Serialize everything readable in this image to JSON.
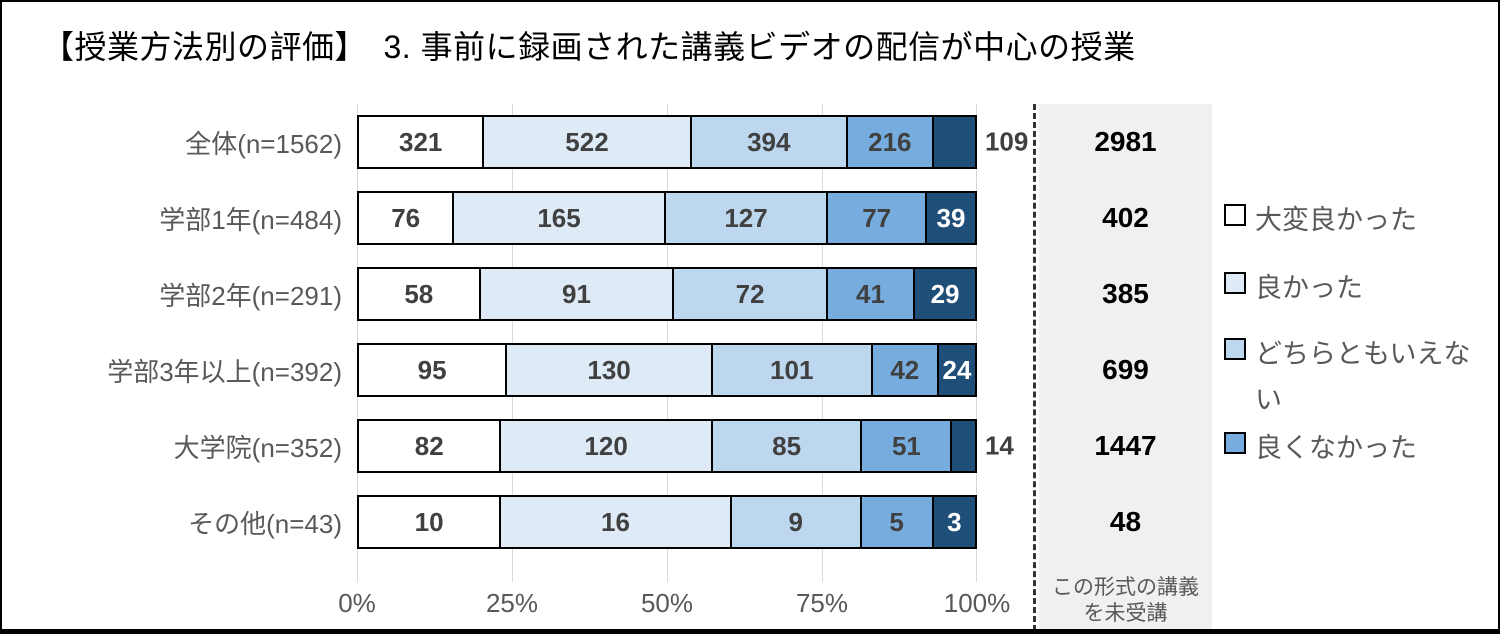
{
  "title": "【授業方法別の評価】　3. 事前に録画された講義ビデオの配信が中心の授業",
  "legend": [
    {
      "label": "大変良かった",
      "color": "#FFFFFF"
    },
    {
      "label": "良かった",
      "color": "#DEEBF7"
    },
    {
      "label": "どちらともいえない",
      "color": "#BDD7EE"
    },
    {
      "label": "良くなかった",
      "color": "#76ADDE"
    }
  ],
  "axis": {
    "ticks": [
      "0%",
      "25%",
      "50%",
      "75%",
      "100%"
    ]
  },
  "side_column": {
    "footer_lines": [
      "この形式の講義",
      "を未受講"
    ]
  },
  "colors": {
    "series": [
      "#FFFFFF",
      "#DEEBF7",
      "#BDD7EE",
      "#76ADDE",
      "#1F4E79"
    ],
    "grid": "#D9D9D9",
    "axis_text": "#595959",
    "value_text": "#404040",
    "value_text_inverse": "#FFFFFF",
    "side_panel_bg": "#F0F0F0",
    "side_value_text": "#000000"
  },
  "chart_data": {
    "type": "bar",
    "orientation": "horizontal",
    "stacked": true,
    "gridlines": true,
    "legend_position": "right",
    "title": "【授業方法別の評価】　3. 事前に録画された講義ビデオの配信が中心の授業",
    "x_axis": {
      "ticks": [
        "0%",
        "25%",
        "50%",
        "75%",
        "100%"
      ],
      "range_percent": [
        0,
        100
      ]
    },
    "categories": [
      "全体(n=1562)",
      "学部1年(n=484)",
      "学部2年(n=291)",
      "学部3年以上(n=392)",
      "大学院(n=352)",
      "その他(n=43)"
    ],
    "series": [
      {
        "name": "大変良かった",
        "color": "#FFFFFF",
        "values": [
          321,
          76,
          58,
          95,
          82,
          10
        ]
      },
      {
        "name": "良かった",
        "color": "#DEEBF7",
        "values": [
          522,
          165,
          91,
          130,
          120,
          16
        ]
      },
      {
        "name": "どちらともいえない",
        "color": "#BDD7EE",
        "values": [
          394,
          127,
          72,
          101,
          85,
          9
        ]
      },
      {
        "name": "良くなかった",
        "color": "#76ADDE",
        "values": [
          216,
          77,
          41,
          42,
          51,
          5
        ]
      },
      {
        "name": "",
        "color": "#1F4E79",
        "values": [
          109,
          39,
          29,
          24,
          14,
          3
        ]
      }
    ],
    "side_values": {
      "header_lines": [
        "この形式の講義",
        "を未受講"
      ],
      "values": [
        2981,
        402,
        385,
        699,
        1447,
        48
      ]
    },
    "value_labels_outside": {
      "series_index": 4,
      "row_indexes": [
        0,
        4
      ]
    }
  }
}
